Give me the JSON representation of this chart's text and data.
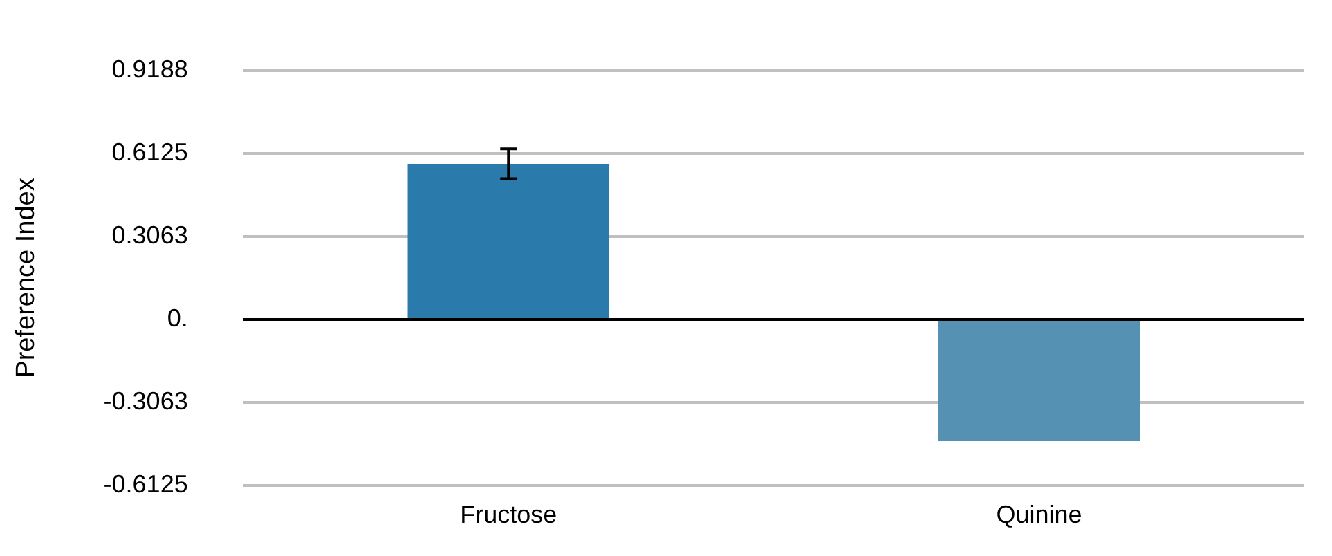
{
  "chart_data": {
    "type": "bar",
    "ylabel": "Preference Index",
    "categories": [
      "Fructose",
      "Quinine"
    ],
    "values": [
      0.574,
      -0.446
    ],
    "colors": [
      "#2a7aab",
      "#5491b2"
    ],
    "errors": [
      0.055,
      null
    ],
    "ylim": [
      -0.6125,
      0.9188
    ],
    "yticks": [
      -0.6125,
      -0.3063,
      {
        "value": 0,
        "label": "0."
      },
      0.3063,
      0.6125,
      0.9188
    ],
    "grid": "y",
    "legend": false
  }
}
